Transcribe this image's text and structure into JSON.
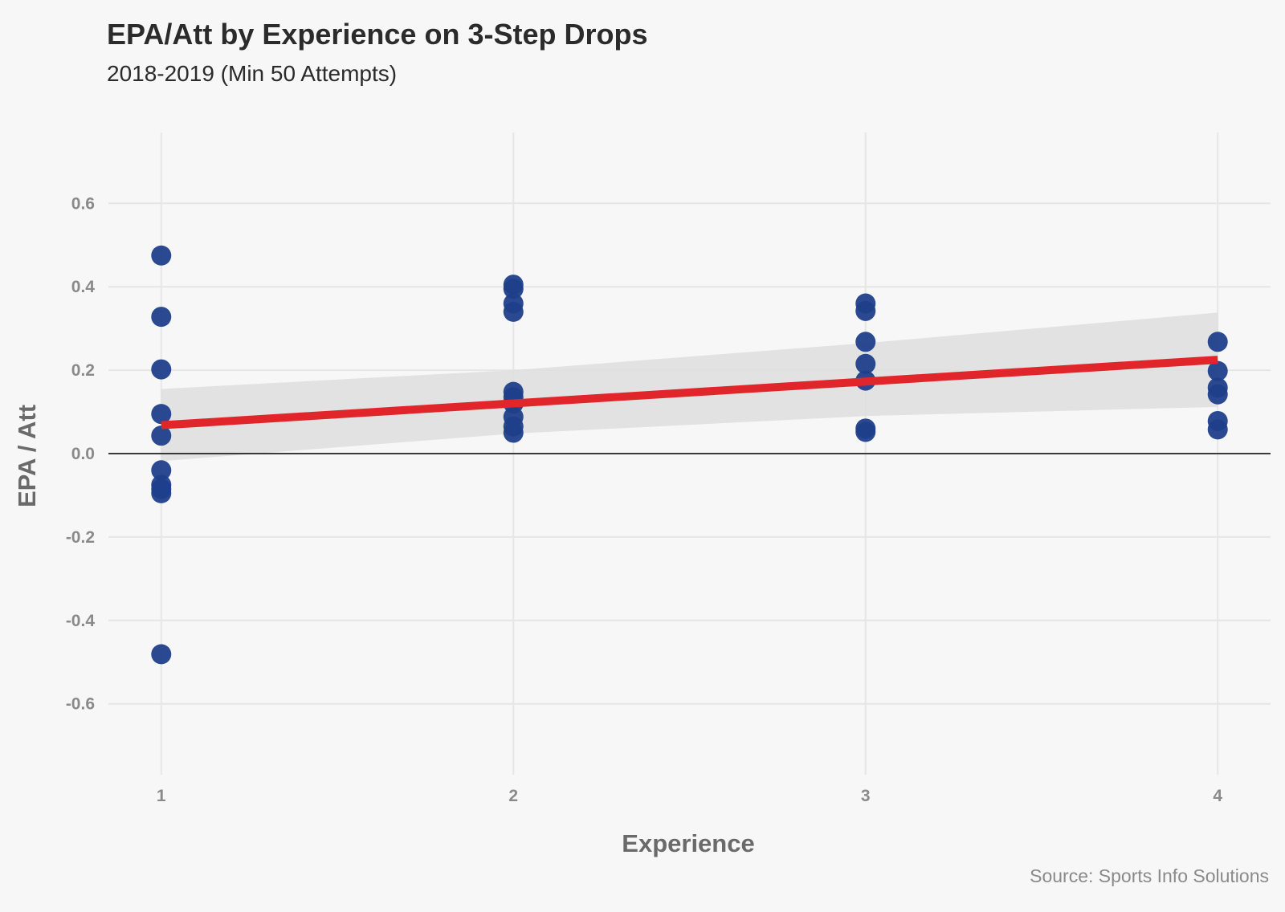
{
  "chart_data": {
    "type": "scatter",
    "title": "EPA/Att by Experience on 3-Step Drops",
    "subtitle": "2018-2019 (Min 50 Attempts)",
    "caption": "Source: Sports Info Solutions",
    "xlabel": "Experience",
    "ylabel": "EPA / Att",
    "xlim": [
      0.85,
      4.15
    ],
    "ylim": [
      -0.77,
      0.77
    ],
    "x_ticks": [
      1,
      2,
      3,
      4
    ],
    "x_tick_labels": [
      "1",
      "2",
      "3",
      "4"
    ],
    "y_ticks": [
      -0.6,
      -0.4,
      -0.2,
      0.0,
      0.2,
      0.4,
      0.6
    ],
    "y_tick_labels": [
      "-0.6",
      "-0.4",
      "-0.2",
      "0.0",
      "0.2",
      "0.4",
      "0.6"
    ],
    "grid": true,
    "reference_line_y": 0,
    "points": [
      {
        "x": 1,
        "y": 0.475
      },
      {
        "x": 1,
        "y": 0.328
      },
      {
        "x": 1,
        "y": 0.202
      },
      {
        "x": 1,
        "y": 0.095
      },
      {
        "x": 1,
        "y": 0.043
      },
      {
        "x": 1,
        "y": -0.04
      },
      {
        "x": 1,
        "y": -0.075
      },
      {
        "x": 1,
        "y": -0.085
      },
      {
        "x": 1,
        "y": -0.095
      },
      {
        "x": 1,
        "y": -0.481
      },
      {
        "x": 2,
        "y": 0.405
      },
      {
        "x": 2,
        "y": 0.395
      },
      {
        "x": 2,
        "y": 0.36
      },
      {
        "x": 2,
        "y": 0.34
      },
      {
        "x": 2,
        "y": 0.148
      },
      {
        "x": 2,
        "y": 0.135
      },
      {
        "x": 2,
        "y": 0.12
      },
      {
        "x": 2,
        "y": 0.088
      },
      {
        "x": 2,
        "y": 0.065
      },
      {
        "x": 2,
        "y": 0.05
      },
      {
        "x": 3,
        "y": 0.36
      },
      {
        "x": 3,
        "y": 0.342
      },
      {
        "x": 3,
        "y": 0.268
      },
      {
        "x": 3,
        "y": 0.215
      },
      {
        "x": 3,
        "y": 0.175
      },
      {
        "x": 3,
        "y": 0.06
      },
      {
        "x": 3,
        "y": 0.052
      },
      {
        "x": 4,
        "y": 0.268
      },
      {
        "x": 4,
        "y": 0.198
      },
      {
        "x": 4,
        "y": 0.158
      },
      {
        "x": 4,
        "y": 0.142
      },
      {
        "x": 4,
        "y": 0.078
      },
      {
        "x": 4,
        "y": 0.058
      }
    ],
    "trend_line": {
      "x": [
        1,
        4
      ],
      "y": [
        0.068,
        0.225
      ]
    },
    "confidence_band": {
      "x": [
        1,
        2,
        3,
        4
      ],
      "upper": [
        0.155,
        0.2,
        0.265,
        0.338
      ],
      "lower": [
        -0.018,
        0.048,
        0.09,
        0.112
      ]
    },
    "colors": {
      "point": "#1f3f8b",
      "trend": "#e0262b",
      "band": "#dedede",
      "grid": "#e6e6e6",
      "zero_line": "#000000"
    }
  }
}
